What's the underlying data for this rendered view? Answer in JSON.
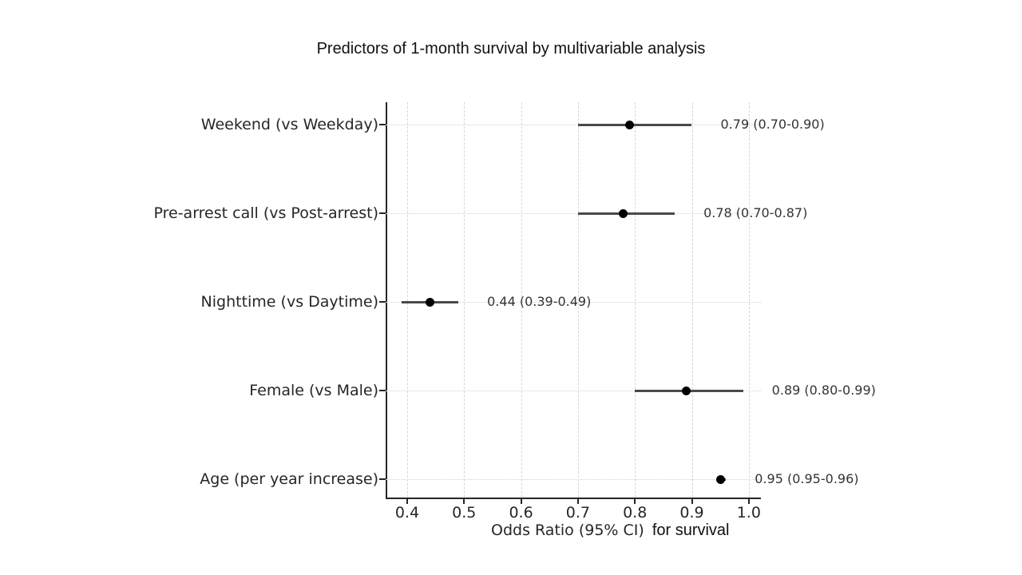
{
  "chart_data": {
    "type": "forest",
    "title": "Predictors of 1-month survival by multivariable analysis",
    "xlabel": "Odds Ratio (95% CI)",
    "xlabel_suffix": "for survival",
    "x_ticks": [
      0.4,
      0.5,
      0.6,
      0.7,
      0.8,
      0.9,
      1.0
    ],
    "xlim": [
      0.3622,
      1.0213
    ],
    "grid": true,
    "legend": "none",
    "rows": [
      {
        "label": "Weekend (vs Weekday)",
        "or": 0.79,
        "ci_low": 0.7,
        "ci_high": 0.9,
        "annotation": "0.79 (0.70-0.90)"
      },
      {
        "label": "Pre-arrest call (vs Post-arrest)",
        "or": 0.78,
        "ci_low": 0.7,
        "ci_high": 0.87,
        "annotation": "0.78 (0.70-0.87)"
      },
      {
        "label": "Nighttime (vs Daytime)",
        "or": 0.44,
        "ci_low": 0.39,
        "ci_high": 0.49,
        "annotation": "0.44 (0.39-0.49)"
      },
      {
        "label": "Female (vs Male)",
        "or": 0.89,
        "ci_low": 0.8,
        "ci_high": 0.99,
        "annotation": "0.89 (0.80-0.99)"
      },
      {
        "label": "Age (per year increase)",
        "or": 0.95,
        "ci_low": 0.95,
        "ci_high": 0.96,
        "annotation": "0.95 (0.95-0.96)"
      }
    ],
    "colors": {
      "background": "#ffffff",
      "ci_line": "#4a4a4a",
      "marker": "#000000",
      "grid": "#d4d4d4",
      "axis": "#262626",
      "text": "#262626"
    }
  }
}
